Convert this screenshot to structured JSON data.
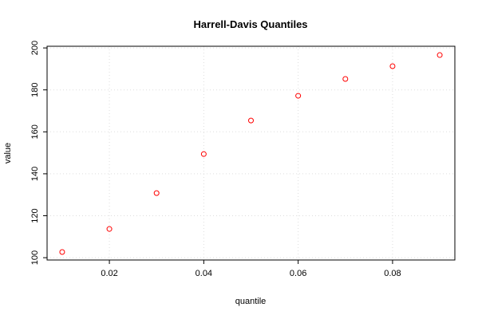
{
  "chart_data": {
    "type": "scatter",
    "title": "Harrell-Davis Quantiles",
    "x_label": "quantile",
    "y_label": "value",
    "series": [
      {
        "name": "value",
        "color": "#ff0000",
        "x": [
          0.01,
          0.02,
          0.03,
          0.04,
          0.05,
          0.06,
          0.07,
          0.08,
          0.09
        ],
        "values": [
          102.7,
          113.7,
          130.8,
          149.4,
          165.4,
          177.2,
          185.2,
          191.3,
          196.6
        ]
      }
    ],
    "xlim": [
      0.0068,
      0.0932
    ],
    "xticks": [
      0.02,
      0.04,
      0.06,
      0.08
    ],
    "ylim": [
      98.9,
      200.8
    ],
    "yticks": [
      100,
      120,
      140,
      160,
      180,
      200
    ],
    "grid": true
  }
}
